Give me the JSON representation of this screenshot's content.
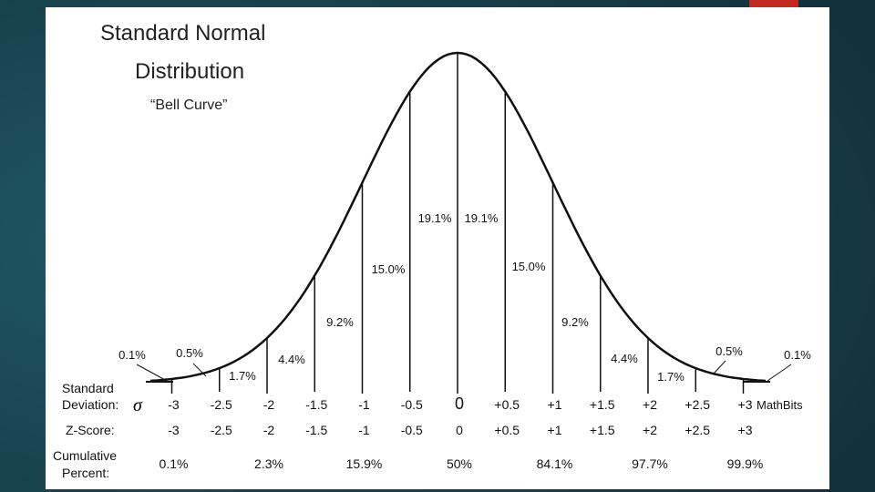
{
  "title": [
    "Standard Normal",
    "Distribution"
  ],
  "subtitle": "“Bell Curve”",
  "bands": [
    "0.1%",
    "0.5%",
    "1.7%",
    "4.4%",
    "9.2%",
    "15.0%",
    "19.1%",
    "19.1%",
    "15.0%",
    "9.2%",
    "4.4%",
    "1.7%",
    "0.5%",
    "0.1%"
  ],
  "rows": {
    "sigma": {
      "label": [
        "Standard",
        "Deviation:"
      ],
      "symbol": "σ",
      "values": [
        "-3",
        "-2.5",
        "-2",
        "-1.5",
        "-1",
        "-0.5",
        "0",
        "+0.5",
        "+1",
        "+1.5",
        "+2",
        "+2.5",
        "+3"
      ]
    },
    "z": {
      "label": "Z-Score:",
      "values": [
        "-3",
        "-2.5",
        "-2",
        "-1.5",
        "-1",
        "-0.5",
        "0",
        "+0.5",
        "+1",
        "+1.5",
        "+2",
        "+2.5",
        "+3"
      ]
    },
    "cumulative": {
      "label": [
        "Cumulative",
        "Percent:"
      ],
      "values": [
        "0.1%",
        "2.3%",
        "15.9%",
        "50%",
        "84.1%",
        "97.7%",
        "99.9%"
      ]
    }
  },
  "credit": "MathBits"
}
